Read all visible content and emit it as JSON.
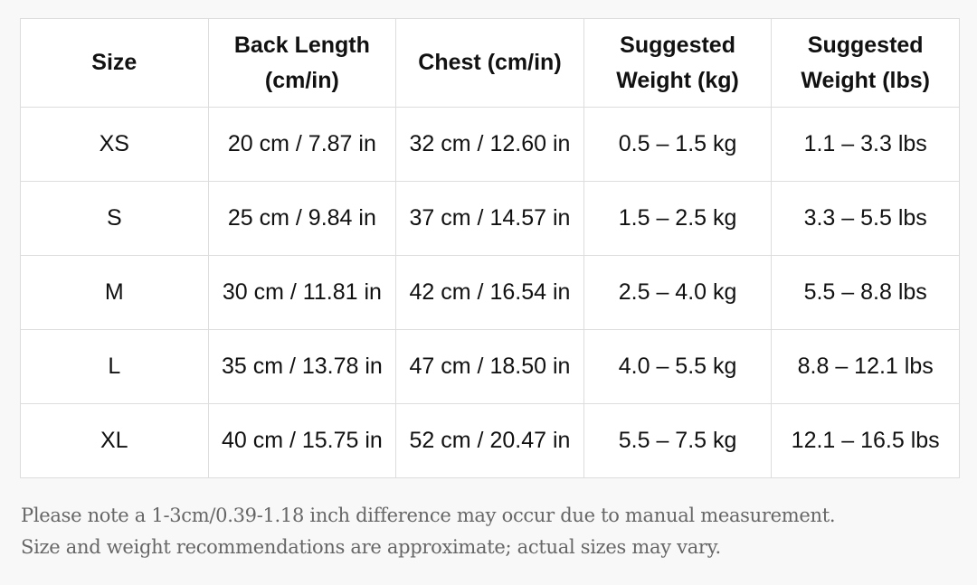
{
  "table": {
    "headers": [
      "Size",
      "Back Length (cm/in)",
      "Chest (cm/in)",
      "Suggested Weight (kg)",
      "Suggested Weight (lbs)"
    ],
    "rows": [
      [
        "XS",
        "20 cm / 7.87 in",
        "32 cm / 12.60 in",
        "0.5 – 1.5 kg",
        "1.1 – 3.3 lbs"
      ],
      [
        "S",
        "25 cm / 9.84 in",
        "37 cm / 14.57 in",
        "1.5 – 2.5 kg",
        "3.3 – 5.5 lbs"
      ],
      [
        "M",
        "30 cm / 11.81 in",
        "42 cm / 16.54 in",
        "2.5 – 4.0 kg",
        "5.5 – 8.8 lbs"
      ],
      [
        "L",
        "35 cm / 13.78 in",
        "47 cm / 18.50 in",
        "4.0 – 5.5 kg",
        "8.8 – 12.1 lbs"
      ],
      [
        "XL",
        "40 cm / 15.75 in",
        "52 cm / 20.47 in",
        "5.5 – 7.5 kg",
        "12.1 – 16.5 lbs"
      ]
    ]
  },
  "notes": [
    "Please note a 1-3cm/0.39-1.18 inch difference may occur due to manual measurement.",
    "Size and weight recommendations are approximate; actual sizes may vary."
  ]
}
